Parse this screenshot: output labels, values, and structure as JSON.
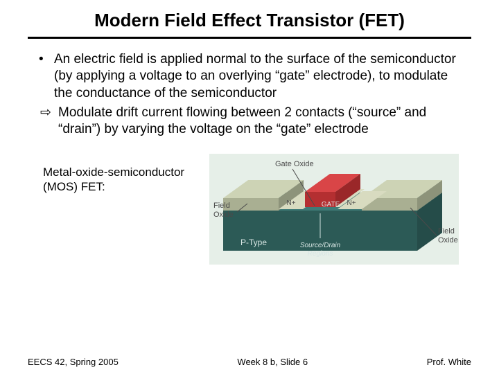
{
  "title": "Modern Field Effect Transistor (FET)",
  "bullet1": "An electric field is applied normal to the surface of the semiconductor (by applying a voltage to an overlying “gate” electrode), to modulate the conductance of the semiconductor",
  "bullet2": "Modulate drift current flowing between 2 contacts (“source” and “drain”) by varying the voltage on the “gate” electrode",
  "mos_label_line1": "Metal-oxide-semiconductor",
  "mos_label_line2": "(MOS) FET:",
  "footer_left": "EECS 42, Spring 2005",
  "footer_center": "Week 8 b, Slide 6",
  "footer_right": "Prof. White",
  "diagram": {
    "labels": {
      "gate_oxide": "Gate Oxide",
      "gate": "GATE",
      "n1": "N+",
      "n2": "N+",
      "field_oxide_left": "Field Oxide",
      "field_oxide_right": "Field Oxide",
      "ptype": "P-Type",
      "sd": "Source/Drain Regions"
    },
    "colors": {
      "background": "#e6efe8",
      "substrate_top": "#3f7b77",
      "substrate_front": "#2c5a56",
      "substrate_side": "#254c49",
      "field_oxide_top": "#cdd3b5",
      "field_oxide_front": "#a9af92",
      "field_oxide_side": "#8d937a",
      "gate_oxide": "#d9dcc2",
      "gate_top": "#d94547",
      "gate_front": "#b42f31",
      "gate_side": "#9a2729",
      "nplus": "#d8dbc0",
      "label_text": "#4a4a4a",
      "gate_text": "#e0e0e0"
    }
  }
}
